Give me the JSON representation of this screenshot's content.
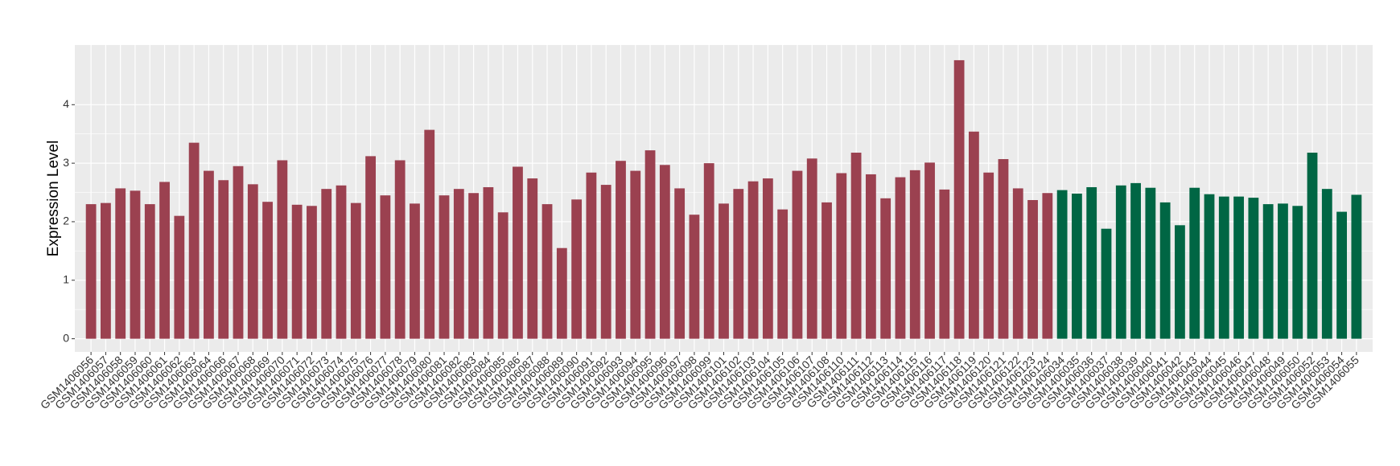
{
  "chart_data": {
    "type": "bar",
    "y_label": "Expression Level",
    "categories": [
      "GSM1406056",
      "GSM1406057",
      "GSM1406058",
      "GSM1406059",
      "GSM1406060",
      "GSM1406061",
      "GSM1406062",
      "GSM1406063",
      "GSM1406064",
      "GSM1406066",
      "GSM1406067",
      "GSM1406068",
      "GSM1406069",
      "GSM1406070",
      "GSM1406071",
      "GSM1406072",
      "GSM1406073",
      "GSM1406074",
      "GSM1406075",
      "GSM1406076",
      "GSM1406077",
      "GSM1406078",
      "GSM1406079",
      "GSM1406080",
      "GSM1406081",
      "GSM1406082",
      "GSM1406083",
      "GSM1406084",
      "GSM1406085",
      "GSM1406086",
      "GSM1406087",
      "GSM1406088",
      "GSM1406089",
      "GSM1406090",
      "GSM1406091",
      "GSM1406092",
      "GSM1406093",
      "GSM1406094",
      "GSM1406095",
      "GSM1406096",
      "GSM1406097",
      "GSM1406098",
      "GSM1406099",
      "GSM1406101",
      "GSM1406102",
      "GSM1406103",
      "GSM1406104",
      "GSM1406105",
      "GSM1406106",
      "GSM1406107",
      "GSM1406108",
      "GSM1406110",
      "GSM1406111",
      "GSM1406112",
      "GSM1406113",
      "GSM1406114",
      "GSM1406115",
      "GSM1406116",
      "GSM1406117",
      "GSM1406118",
      "GSM1406119",
      "GSM1406120",
      "GSM1406121",
      "GSM1406122",
      "GSM1406123",
      "GSM1406124",
      "GSM1406034",
      "GSM1406035",
      "GSM1406036",
      "GSM1406037",
      "GSM1406038",
      "GSM1406039",
      "GSM1406040",
      "GSM1406041",
      "GSM1406042",
      "GSM1406043",
      "GSM1406044",
      "GSM1406045",
      "GSM1406046",
      "GSM1406047",
      "GSM1406048",
      "GSM1406049",
      "GSM1406050",
      "GSM1406052",
      "GSM1406053",
      "GSM1406054",
      "GSM1406055"
    ],
    "values": [
      2.3,
      2.32,
      2.57,
      2.53,
      2.3,
      2.68,
      2.1,
      3.35,
      2.87,
      2.71,
      2.95,
      2.64,
      2.34,
      3.05,
      2.29,
      2.27,
      2.56,
      2.62,
      2.32,
      3.12,
      2.45,
      3.05,
      2.31,
      3.57,
      2.45,
      2.56,
      2.49,
      2.59,
      2.16,
      2.94,
      2.74,
      2.3,
      1.55,
      2.38,
      2.84,
      2.63,
      3.04,
      2.87,
      3.22,
      2.97,
      2.57,
      2.12,
      3.0,
      2.31,
      2.56,
      2.69,
      2.74,
      2.21,
      2.87,
      3.08,
      2.33,
      2.83,
      3.18,
      2.81,
      2.4,
      2.76,
      2.88,
      3.01,
      2.55,
      4.76,
      3.54,
      2.84,
      3.07,
      2.57,
      2.37,
      2.49,
      2.54,
      2.48,
      2.59,
      1.88,
      2.62,
      2.66,
      2.58,
      2.33,
      1.94,
      2.58,
      2.47,
      2.43,
      2.43,
      2.41,
      2.3,
      2.31,
      2.27,
      3.18,
      2.56,
      2.17,
      2.46
    ],
    "colors": [
      "#9b4150",
      "#9b4150",
      "#9b4150",
      "#9b4150",
      "#9b4150",
      "#9b4150",
      "#9b4150",
      "#9b4150",
      "#9b4150",
      "#9b4150",
      "#9b4150",
      "#9b4150",
      "#9b4150",
      "#9b4150",
      "#9b4150",
      "#9b4150",
      "#9b4150",
      "#9b4150",
      "#9b4150",
      "#9b4150",
      "#9b4150",
      "#9b4150",
      "#9b4150",
      "#9b4150",
      "#9b4150",
      "#9b4150",
      "#9b4150",
      "#9b4150",
      "#9b4150",
      "#9b4150",
      "#9b4150",
      "#9b4150",
      "#9b4150",
      "#9b4150",
      "#9b4150",
      "#9b4150",
      "#9b4150",
      "#9b4150",
      "#9b4150",
      "#9b4150",
      "#9b4150",
      "#9b4150",
      "#9b4150",
      "#9b4150",
      "#9b4150",
      "#9b4150",
      "#9b4150",
      "#9b4150",
      "#9b4150",
      "#9b4150",
      "#9b4150",
      "#9b4150",
      "#9b4150",
      "#9b4150",
      "#9b4150",
      "#9b4150",
      "#9b4150",
      "#9b4150",
      "#9b4150",
      "#9b4150",
      "#9b4150",
      "#9b4150",
      "#9b4150",
      "#9b4150",
      "#9b4150",
      "#9b4150",
      "#006644",
      "#006644",
      "#006644",
      "#006644",
      "#006644",
      "#006644",
      "#006644",
      "#006644",
      "#006644",
      "#006644",
      "#006644",
      "#006644",
      "#006644",
      "#006644",
      "#006644",
      "#006644",
      "#006644",
      "#006644",
      "#006644",
      "#006644",
      "#006644"
    ],
    "ylim": [
      -0.225,
      5.02
    ],
    "yticks": [
      0,
      1,
      2,
      3,
      4
    ],
    "grid": true
  }
}
